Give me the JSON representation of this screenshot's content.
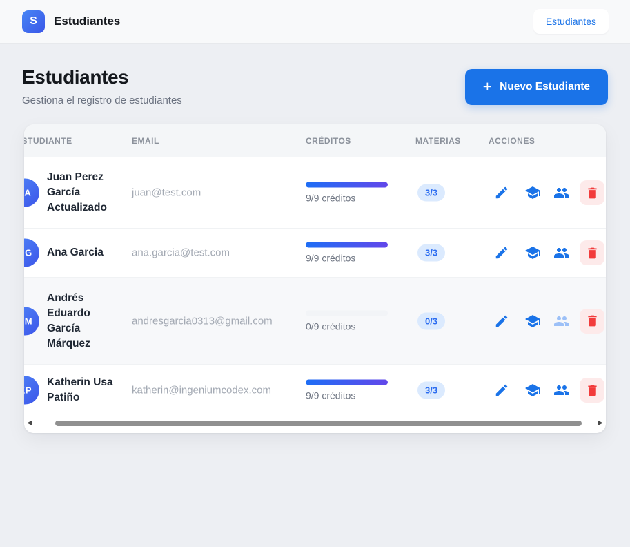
{
  "brand": {
    "logo_letter": "S",
    "app_title": "Estudiantes"
  },
  "nav": {
    "active_item": "Estudiantes"
  },
  "page": {
    "title": "Estudiantes",
    "subtitle": "Gestiona el registro de estudiantes",
    "new_button_label": "Nuevo Estudiante",
    "new_button_icon": "plus-icon"
  },
  "table": {
    "headers": [
      "ESTUDIANTE",
      "EMAIL",
      "CRÉDITOS",
      "MATERIAS",
      "ACCIONES"
    ],
    "action_icons": [
      "edit-pencil-icon",
      "subjects-graduation-cap-icon",
      "groups-people-icon",
      "delete-trash-icon"
    ],
    "rows": [
      {
        "initials": "JA",
        "name": "Juan Perez García Actualizado",
        "email": "juan@test.com",
        "credits_label": "9/9 créditos",
        "credits_pct": 100,
        "materias": "3/3",
        "highlighted": false,
        "people_disabled": false
      },
      {
        "initials": "AG",
        "name": "Ana Garcia",
        "email": "ana.garcia@test.com",
        "credits_label": "9/9 créditos",
        "credits_pct": 100,
        "materias": "3/3",
        "highlighted": false,
        "people_disabled": false
      },
      {
        "initials": "AM",
        "name": "Andrés Eduardo García Márquez",
        "email": "andresgarcia0313@gmail.com",
        "credits_label": "0/9 créditos",
        "credits_pct": 0,
        "materias": "0/3",
        "highlighted": true,
        "people_disabled": true
      },
      {
        "initials": "KP",
        "name": "Katherin Usa Patiño",
        "email": "katherin@ingeniumcodex.com",
        "credits_label": "9/9 créditos",
        "credits_pct": 100,
        "materias": "3/3",
        "highlighted": false,
        "people_disabled": false
      }
    ]
  },
  "colors": {
    "accent_blue": "#1a73e8",
    "progress_gradient_start": "#1e6ef5",
    "progress_gradient_end": "#6247ea",
    "badge_bg": "#dbeafe",
    "badge_text": "#2b6cf0",
    "danger_red": "#f23b3b",
    "danger_bg": "#fdeaea",
    "avatar_gradient_start": "#4f86f7",
    "avatar_gradient_end": "#3c55e9"
  }
}
